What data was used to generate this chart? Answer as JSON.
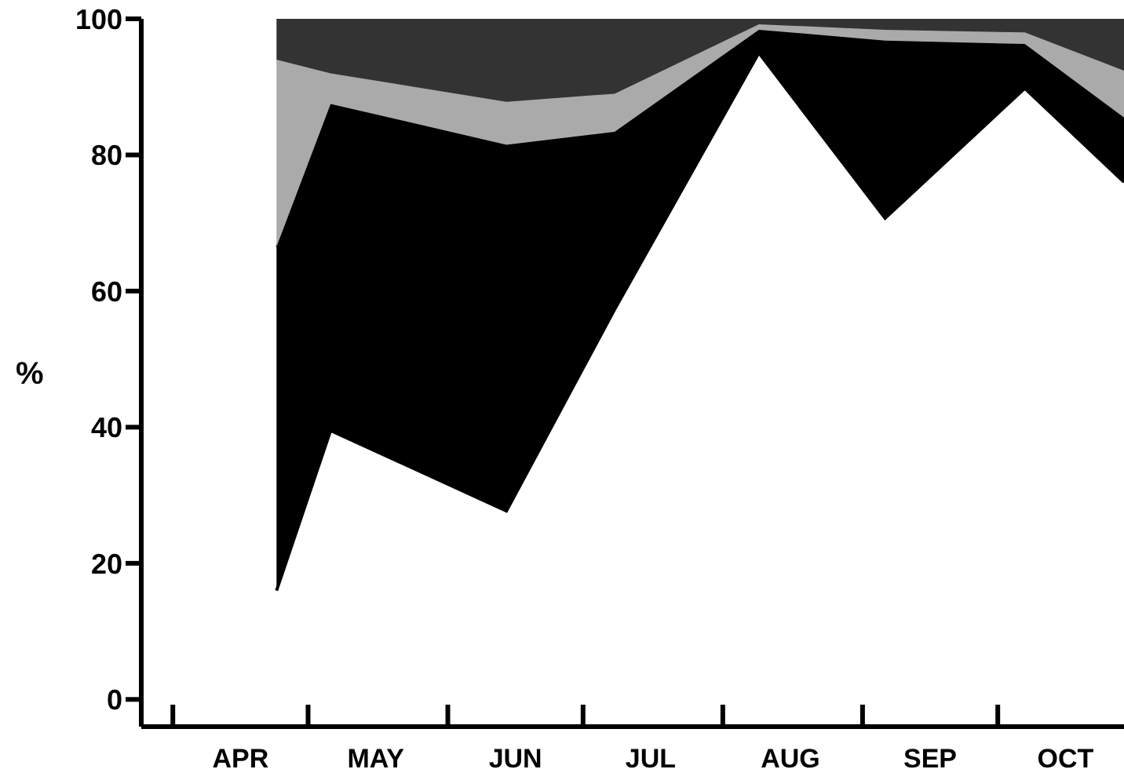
{
  "chart_data": {
    "type": "area",
    "ylabel": "%",
    "stacked": true,
    "x": [
      "--04-24",
      "--05-06",
      "--06-14",
      "--07-08",
      "--08-09",
      "--09-06",
      "--10-07",
      "--10-29"
    ],
    "series": [
      {
        "color": "#ffffff",
        "values": [
          16,
          39.5,
          27.7,
          57.3,
          95,
          70.7,
          89.8,
          76
        ]
      },
      {
        "color": "#000000",
        "values": [
          50.5,
          48,
          53.8,
          26.1,
          3.4,
          26.1,
          6.5,
          9.5
        ]
      },
      {
        "color": "#aaaaaa",
        "values": [
          27.5,
          4.5,
          6.3,
          5.6,
          0.8,
          1.6,
          1.7,
          6.9
        ]
      },
      {
        "color": "#333333",
        "values": [
          6,
          8,
          12.2,
          11,
          0.8,
          1.6,
          2,
          7.6
        ]
      }
    ],
    "xlim": [
      "--03-25",
      "--10-29"
    ],
    "xticks": [
      {
        "value": "--04-01",
        "label": null
      },
      {
        "value": "--04-16",
        "label": "APR"
      },
      {
        "value": "--05-01",
        "label": null
      },
      {
        "value": "--05-16",
        "label": "MAY"
      },
      {
        "value": "--06-01",
        "label": null
      },
      {
        "value": "--06-16",
        "label": "JUN"
      },
      {
        "value": "--07-01",
        "label": null
      },
      {
        "value": "--07-16",
        "label": "JUL"
      },
      {
        "value": "--08-01",
        "label": null
      },
      {
        "value": "--08-16",
        "label": "AUG"
      },
      {
        "value": "--09-01",
        "label": null
      },
      {
        "value": "--09-16",
        "label": "SEP"
      },
      {
        "value": "--10-01",
        "label": null
      },
      {
        "value": "--10-16",
        "label": "OCT"
      }
    ],
    "ylim": [
      -4,
      100
    ],
    "yticks": [
      0,
      20,
      40,
      60,
      80,
      100
    ]
  }
}
